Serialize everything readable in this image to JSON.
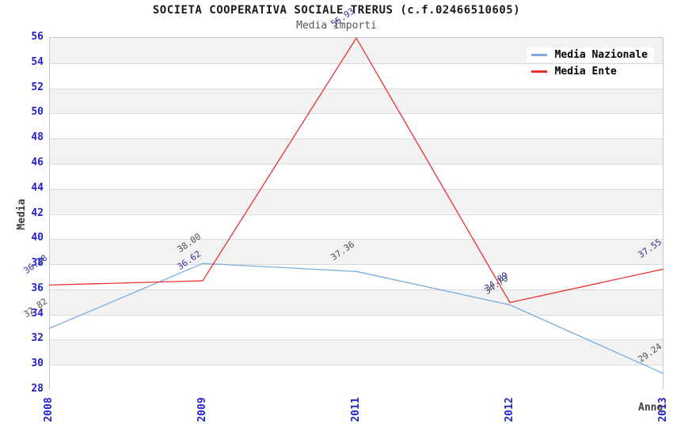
{
  "header": {
    "title": "SOCIETA COOPERATIVA SOCIALE TRERUS (c.f.02466510605)",
    "subtitle": "Media Importi"
  },
  "legend": {
    "position": "top-right",
    "items": [
      {
        "label": "Media Nazionale",
        "color": "#7cacde"
      },
      {
        "label": "Media Ente",
        "color": "#e8312f"
      }
    ]
  },
  "chart_data": {
    "type": "line",
    "title": "SOCIETA COOPERATIVA SOCIALE TRERUS (c.f.02466510605)",
    "subtitle": "Media Importi",
    "x": [
      "2008",
      "2009",
      "2011",
      "2012",
      "2013"
    ],
    "series": [
      {
        "name": "Media Nazionale",
        "color": "#7cacde",
        "label_color": "#4d4d4d",
        "values": [
          32.82,
          38.0,
          37.36,
          34.7,
          29.24
        ],
        "labels": [
          "32.82",
          "38.00",
          "37.36",
          "34.70",
          "29.24"
        ]
      },
      {
        "name": "Media Ente",
        "color": "#e8312f",
        "label_color": "#333399",
        "values": [
          36.28,
          36.62,
          55.93,
          34.89,
          37.55
        ],
        "labels": [
          "36.28",
          "36.62",
          "55.93",
          "34.89",
          "37.55"
        ]
      }
    ],
    "xlabel": "Anno",
    "ylabel": "Media",
    "ylim": [
      28,
      56
    ],
    "yticks": [
      28,
      30,
      32,
      34,
      36,
      38,
      40,
      42,
      44,
      46,
      48,
      50,
      52,
      54,
      56
    ],
    "grid": "horizontal-gridlines-with-alternating-bands",
    "legend_position": "top-right"
  },
  "colors": {
    "band_gray": "#f2f2f2",
    "band_white": "#ffffff",
    "gridline": "#dadada",
    "plot_border": "#c9c9c9",
    "tick_text": "#2222cc",
    "axis_title_text": "#404040",
    "title_text": "#1a1a1a",
    "subtitle_text": "#555555"
  }
}
